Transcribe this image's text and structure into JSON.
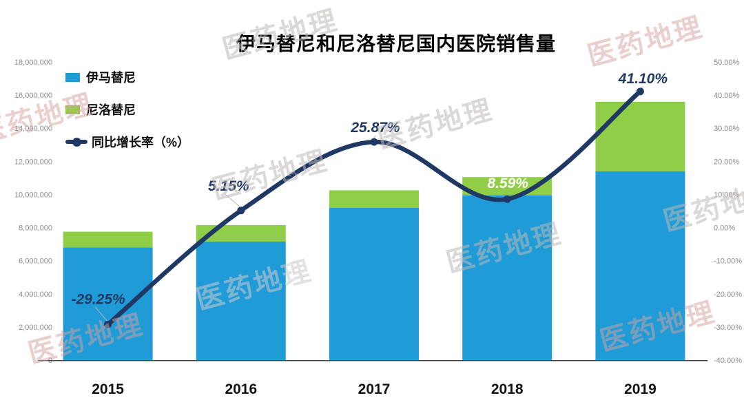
{
  "watermark_text": "医药地理",
  "chart_data": {
    "type": "bar+line",
    "title": "伊马替尼和尼洛替尼国内医院销售量",
    "categories": [
      "2015",
      "2016",
      "2017",
      "2018",
      "2019"
    ],
    "series": [
      {
        "name": "伊马替尼",
        "type": "bar",
        "color": "#1F9CD7",
        "values": [
          6800000,
          7150000,
          9200000,
          9950000,
          11400000
        ]
      },
      {
        "name": "尼洛替尼",
        "type": "bar",
        "color": "#8FCE46",
        "values": [
          950000,
          1000000,
          1050000,
          1100000,
          4200000
        ]
      },
      {
        "name": "同比增长率（%）",
        "type": "line",
        "color": "#1F3864",
        "axis": "right",
        "values": [
          -29.25,
          5.15,
          25.87,
          8.59,
          41.1
        ],
        "labels": [
          "-29.25%",
          "5.15%",
          "25.87%",
          "8.59%",
          "41.10%"
        ],
        "label_colors": [
          "#1F3864",
          "#1F3864",
          "#1F3864",
          "#FFFFFF",
          "#1F3864"
        ]
      }
    ],
    "left_axis": {
      "min": 0,
      "max": 18000000,
      "step": 2000000,
      "ticks": [
        "0",
        "2,000,000",
        "4,000,000",
        "6,000,000",
        "8,000,000",
        "10,000,000",
        "12,000,000",
        "14,000,000",
        "16,000,000",
        "18,000,000"
      ]
    },
    "right_axis": {
      "min": -40,
      "max": 50,
      "step": 10,
      "ticks": [
        "-40.00%",
        "-30.00%",
        "-20.00%",
        "-10.00%",
        "0.00%",
        "10.00%",
        "20.00%",
        "30.00%",
        "40.00%",
        "50.00%"
      ]
    },
    "grid": false,
    "legend_position": "top-left",
    "stacked": true
  }
}
